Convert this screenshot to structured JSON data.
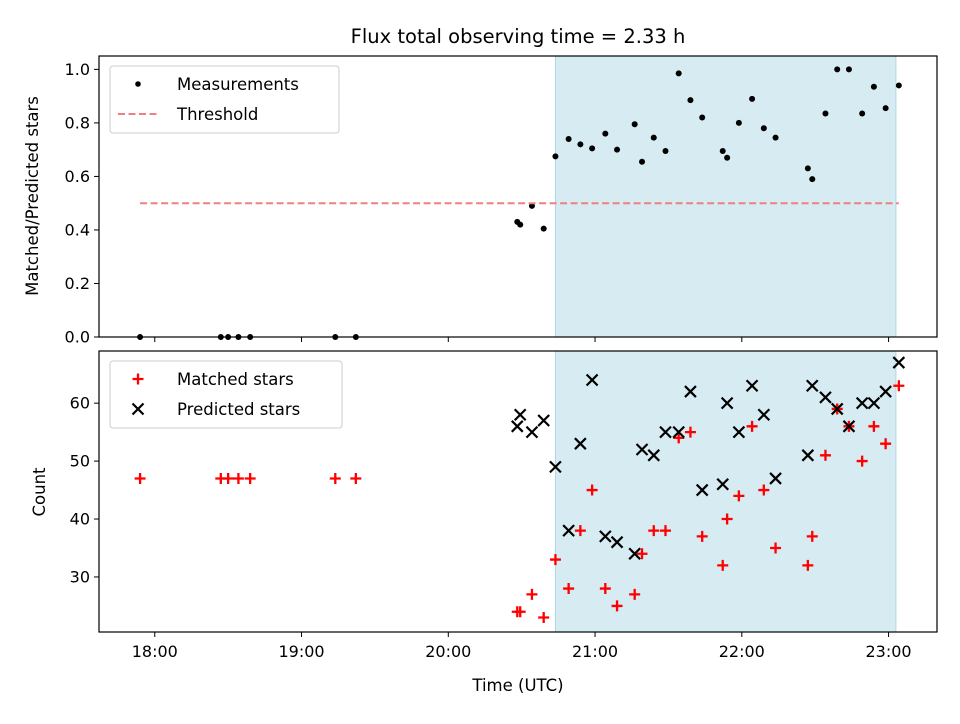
{
  "chart_data": {
    "title": "Flux total observing time = 2.33 h",
    "xlabel": "Time (UTC)",
    "xlim_hours": [
      17.62,
      23.33
    ],
    "x_ticks": [
      {
        "value": 18,
        "label": "18:00"
      },
      {
        "value": 19,
        "label": "19:00"
      },
      {
        "value": 20,
        "label": "20:00"
      },
      {
        "value": 21,
        "label": "21:00"
      },
      {
        "value": 22,
        "label": "22:00"
      },
      {
        "value": 23,
        "label": "23:00"
      }
    ],
    "shaded_region": {
      "x_start": 20.73,
      "x_end": 23.05,
      "color": "#add8e6"
    },
    "top": {
      "type": "scatter",
      "ylabel": "Matched/Predicted stars",
      "ylim": [
        0.0,
        1.05
      ],
      "yticks": [
        "0.0",
        "0.2",
        "0.4",
        "0.6",
        "0.8",
        "1.0"
      ],
      "legend_position": "upper-left",
      "series": [
        {
          "name": "Measurements",
          "marker": "dot",
          "color": "#000000",
          "points": [
            [
              17.9,
              0.0
            ],
            [
              18.45,
              0.0
            ],
            [
              18.5,
              0.0
            ],
            [
              18.57,
              0.0
            ],
            [
              18.65,
              0.0
            ],
            [
              19.23,
              0.0
            ],
            [
              19.37,
              0.0
            ],
            [
              20.47,
              0.43
            ],
            [
              20.49,
              0.42
            ],
            [
              20.57,
              0.49
            ],
            [
              20.65,
              0.405
            ],
            [
              20.73,
              0.675
            ],
            [
              20.82,
              0.74
            ],
            [
              20.9,
              0.72
            ],
            [
              20.98,
              0.705
            ],
            [
              21.07,
              0.76
            ],
            [
              21.15,
              0.7
            ],
            [
              21.27,
              0.795
            ],
            [
              21.32,
              0.655
            ],
            [
              21.4,
              0.745
            ],
            [
              21.48,
              0.695
            ],
            [
              21.57,
              0.985
            ],
            [
              21.65,
              0.885
            ],
            [
              21.73,
              0.82
            ],
            [
              21.87,
              0.695
            ],
            [
              21.9,
              0.67
            ],
            [
              21.98,
              0.8
            ],
            [
              22.07,
              0.89
            ],
            [
              22.15,
              0.78
            ],
            [
              22.23,
              0.745
            ],
            [
              22.45,
              0.63
            ],
            [
              22.48,
              0.59
            ],
            [
              22.57,
              0.835
            ],
            [
              22.65,
              1.0
            ],
            [
              22.73,
              1.0
            ],
            [
              22.82,
              0.835
            ],
            [
              22.9,
              0.935
            ],
            [
              22.98,
              0.855
            ],
            [
              23.07,
              0.94
            ]
          ]
        },
        {
          "name": "Threshold",
          "style": "dashed",
          "color": "#f08080",
          "x": [
            17.9,
            23.07
          ],
          "y": [
            0.5,
            0.5
          ]
        }
      ]
    },
    "bottom": {
      "type": "scatter",
      "ylabel": "Count",
      "ylim": [
        20.5,
        69.0
      ],
      "yticks": [
        30,
        40,
        50,
        60
      ],
      "legend_position": "upper-left",
      "series": [
        {
          "name": "Matched stars",
          "marker": "plus",
          "color": "#ff0000",
          "points": [
            [
              17.9,
              47
            ],
            [
              18.45,
              47
            ],
            [
              18.5,
              47
            ],
            [
              18.57,
              47
            ],
            [
              18.65,
              47
            ],
            [
              19.23,
              47
            ],
            [
              19.37,
              47
            ],
            [
              20.47,
              24
            ],
            [
              20.49,
              24
            ],
            [
              20.57,
              27
            ],
            [
              20.65,
              23
            ],
            [
              20.73,
              33
            ],
            [
              20.82,
              28
            ],
            [
              20.9,
              38
            ],
            [
              20.98,
              45
            ],
            [
              21.07,
              28
            ],
            [
              21.15,
              25
            ],
            [
              21.27,
              27
            ],
            [
              21.32,
              34
            ],
            [
              21.4,
              38
            ],
            [
              21.48,
              38
            ],
            [
              21.57,
              54
            ],
            [
              21.65,
              55
            ],
            [
              21.73,
              37
            ],
            [
              21.87,
              32
            ],
            [
              21.9,
              40
            ],
            [
              21.98,
              44
            ],
            [
              22.07,
              56
            ],
            [
              22.15,
              45
            ],
            [
              22.23,
              35
            ],
            [
              22.45,
              32
            ],
            [
              22.48,
              37
            ],
            [
              22.57,
              51
            ],
            [
              22.65,
              59
            ],
            [
              22.73,
              56
            ],
            [
              22.82,
              50
            ],
            [
              22.9,
              56
            ],
            [
              22.98,
              53
            ],
            [
              23.07,
              63
            ]
          ]
        },
        {
          "name": "Predicted stars",
          "marker": "x",
          "color": "#000000",
          "points": [
            [
              20.47,
              56
            ],
            [
              20.49,
              58
            ],
            [
              20.57,
              55
            ],
            [
              20.65,
              57
            ],
            [
              20.73,
              49
            ],
            [
              20.82,
              38
            ],
            [
              20.9,
              53
            ],
            [
              20.98,
              64
            ],
            [
              21.07,
              37
            ],
            [
              21.15,
              36
            ],
            [
              21.27,
              34
            ],
            [
              21.32,
              52
            ],
            [
              21.4,
              51
            ],
            [
              21.48,
              55
            ],
            [
              21.57,
              55
            ],
            [
              21.65,
              62
            ],
            [
              21.73,
              45
            ],
            [
              21.87,
              46
            ],
            [
              21.9,
              60
            ],
            [
              21.98,
              55
            ],
            [
              22.07,
              63
            ],
            [
              22.15,
              58
            ],
            [
              22.23,
              47
            ],
            [
              22.45,
              51
            ],
            [
              22.48,
              63
            ],
            [
              22.57,
              61
            ],
            [
              22.65,
              59
            ],
            [
              22.73,
              56
            ],
            [
              22.82,
              60
            ],
            [
              22.9,
              60
            ],
            [
              22.98,
              62
            ],
            [
              23.07,
              67
            ]
          ]
        }
      ]
    }
  }
}
